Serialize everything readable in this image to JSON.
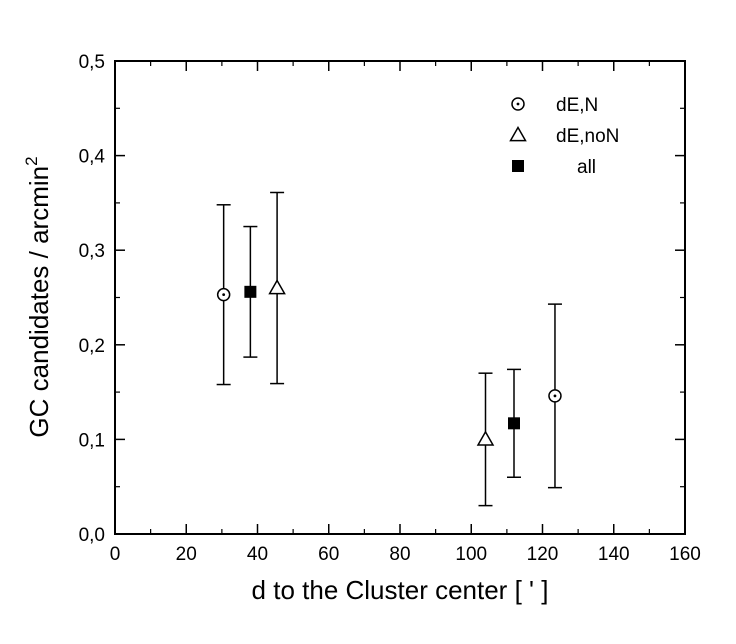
{
  "chart_data": {
    "type": "scatter",
    "xlabel": "d to the Cluster center [ ' ]",
    "ylabel_main": "GC candidates / arcmin",
    "ylabel_sup": "2",
    "xlim": [
      0,
      160
    ],
    "ylim": [
      0.0,
      0.5
    ],
    "x_ticks": [
      0,
      20,
      40,
      60,
      80,
      100,
      120,
      140,
      160
    ],
    "x_tick_labels": [
      "0",
      "20",
      "40",
      "60",
      "80",
      "100",
      "120",
      "140",
      "160"
    ],
    "y_ticks": [
      0.0,
      0.1,
      0.2,
      0.3,
      0.4,
      0.5
    ],
    "y_tick_labels": [
      "0,0",
      "0,1",
      "0,2",
      "0,3",
      "0,4",
      "0,5"
    ],
    "grid": false,
    "legend_position": "top-right",
    "series": [
      {
        "name": "dE,N",
        "marker": "circle-dot",
        "points": [
          {
            "x": 30.5,
            "y": 0.253,
            "ylow": 0.158,
            "yhigh": 0.348
          },
          {
            "x": 123.5,
            "y": 0.146,
            "ylow": 0.049,
            "yhigh": 0.243
          }
        ]
      },
      {
        "name": "dE,noN",
        "marker": "triangle-open",
        "points": [
          {
            "x": 45.5,
            "y": 0.26,
            "ylow": 0.159,
            "yhigh": 0.361
          },
          {
            "x": 104.0,
            "y": 0.1,
            "ylow": 0.03,
            "yhigh": 0.17
          }
        ]
      },
      {
        "name": "all",
        "marker": "square-filled",
        "points": [
          {
            "x": 38.0,
            "y": 0.256,
            "ylow": 0.187,
            "yhigh": 0.325
          },
          {
            "x": 112.0,
            "y": 0.117,
            "ylow": 0.06,
            "yhigh": 0.174
          }
        ]
      }
    ]
  }
}
